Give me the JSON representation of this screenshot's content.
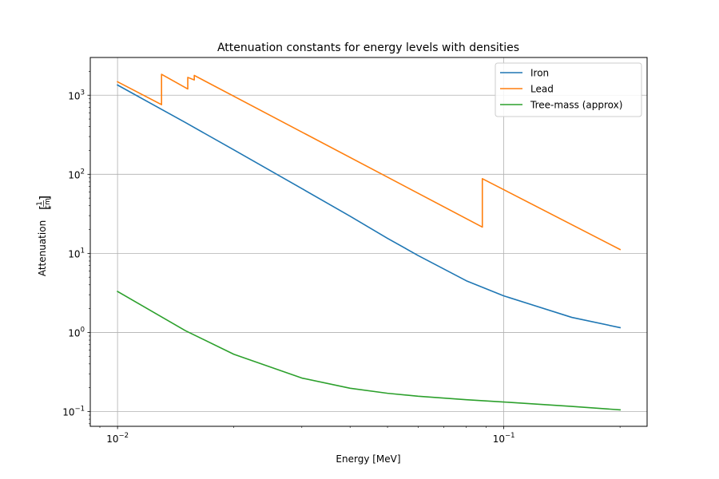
{
  "chart_data": {
    "type": "line",
    "title": "Attenuation constants for energy levels with densities",
    "xlabel": "Energy [MeV]",
    "ylabel": "Attenuation",
    "ylabel_unit_num": "1",
    "ylabel_unit_den": "cm",
    "xscale": "log",
    "yscale": "log",
    "xlim": [
      0.0085,
      0.235
    ],
    "ylim": [
      0.065,
      3000
    ],
    "grid": true,
    "legend_position": "top-right",
    "x_ticks": [
      {
        "value": 0.01,
        "base": "10",
        "exp": "−2"
      },
      {
        "value": 0.1,
        "base": "10",
        "exp": "−1"
      }
    ],
    "y_ticks": [
      {
        "value": 0.1,
        "base": "10",
        "exp": "−1"
      },
      {
        "value": 1,
        "base": "10",
        "exp": "0"
      },
      {
        "value": 10,
        "base": "10",
        "exp": "1"
      },
      {
        "value": 100,
        "base": "10",
        "exp": "2"
      },
      {
        "value": 1000,
        "base": "10",
        "exp": "3"
      }
    ],
    "series": [
      {
        "name": "Iron",
        "color": "#1f77b4",
        "x": [
          0.01,
          0.015,
          0.02,
          0.03,
          0.04,
          0.05,
          0.06,
          0.08,
          0.1,
          0.15,
          0.2
        ],
        "y": [
          1345,
          450,
          204,
          66,
          29.5,
          15.5,
          9.4,
          4.5,
          2.9,
          1.55,
          1.15
        ]
      },
      {
        "name": "Lead",
        "color": "#ff7f0e",
        "x": [
          0.01,
          0.013,
          0.013,
          0.0152,
          0.0152,
          0.0158,
          0.0158,
          0.088,
          0.088,
          0.2
        ],
        "y": [
          1480,
          760,
          1840,
          1200,
          1680,
          1560,
          1780,
          21.5,
          88,
          11.2
        ]
      },
      {
        "name": "Tree-mass (approx)",
        "color": "#2ca02c",
        "x": [
          0.01,
          0.015,
          0.02,
          0.03,
          0.04,
          0.05,
          0.06,
          0.08,
          0.1,
          0.15,
          0.2
        ],
        "y": [
          3.3,
          1.05,
          0.53,
          0.265,
          0.197,
          0.17,
          0.156,
          0.141,
          0.132,
          0.116,
          0.105
        ]
      }
    ]
  }
}
